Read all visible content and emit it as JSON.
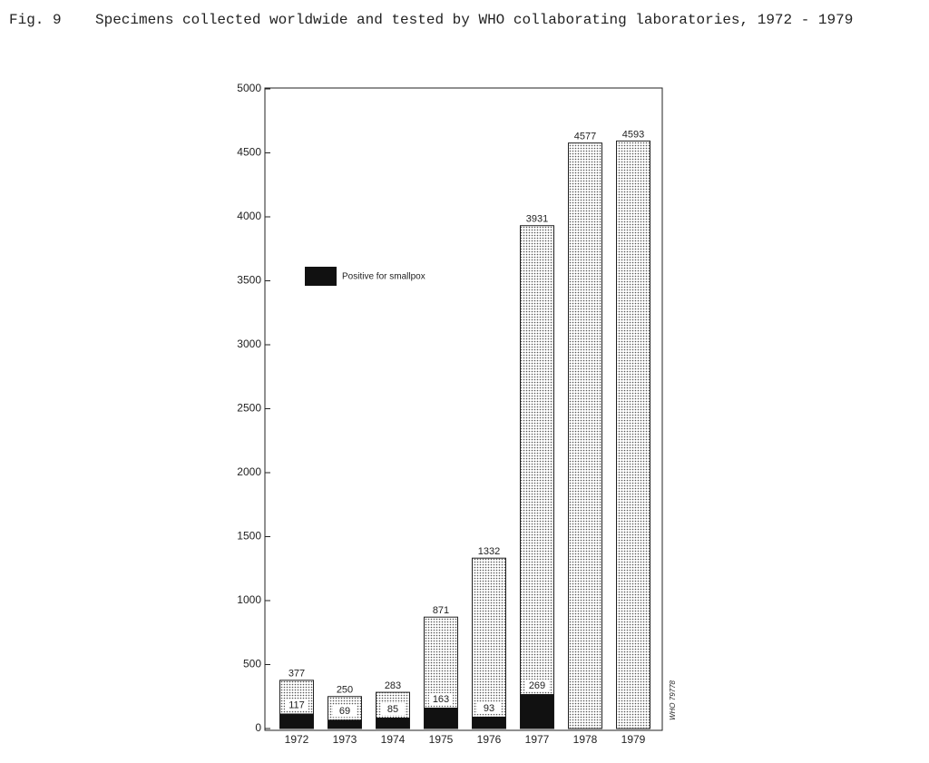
{
  "chart_data": {
    "type": "bar",
    "figure_label": "Fig. 9",
    "title": "Specimens collected worldwide and tested by WHO collaborating laboratories, 1972 - 1979",
    "annotation": "WHO 79778",
    "categories": [
      "1972",
      "1973",
      "1974",
      "1975",
      "1976",
      "1977",
      "1978",
      "1979"
    ],
    "series": [
      {
        "color": "#555555",
        "values": [
          377,
          250,
          283,
          871,
          1332,
          3931,
          4577,
          4593
        ]
      },
      {
        "name": "Positive for smallpox",
        "color": "#111111",
        "values": [
          117,
          69,
          85,
          163,
          93,
          269,
          null,
          null
        ]
      }
    ],
    "ylim": [
      0,
      5000
    ],
    "yticks": [
      0,
      500,
      1000,
      1500,
      2000,
      2500,
      3000,
      3500,
      4000,
      4500,
      5000
    ]
  }
}
